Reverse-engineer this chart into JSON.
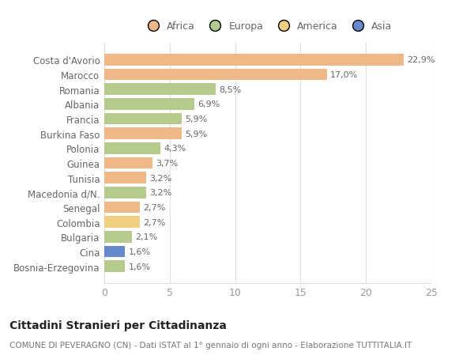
{
  "categories": [
    "Bosnia-Erzegovina",
    "Cina",
    "Bulgaria",
    "Colombia",
    "Senegal",
    "Macedonia d/N.",
    "Tunisia",
    "Guinea",
    "Polonia",
    "Burkina Faso",
    "Francia",
    "Albania",
    "Romania",
    "Marocco",
    "Costa d'Avorio"
  ],
  "values": [
    1.6,
    1.6,
    2.1,
    2.7,
    2.7,
    3.2,
    3.2,
    3.7,
    4.3,
    5.9,
    5.9,
    6.9,
    8.5,
    17.0,
    22.9
  ],
  "labels": [
    "1,6%",
    "1,6%",
    "2,1%",
    "2,7%",
    "2,7%",
    "3,2%",
    "3,2%",
    "3,7%",
    "4,3%",
    "5,9%",
    "5,9%",
    "6,9%",
    "8,5%",
    "17,0%",
    "22,9%"
  ],
  "colors": [
    "#b5ca8d",
    "#6688cc",
    "#b5ca8d",
    "#f0d080",
    "#f0b888",
    "#b5ca8d",
    "#f0b888",
    "#f0b888",
    "#b5ca8d",
    "#f0b888",
    "#b5ca8d",
    "#b5ca8d",
    "#b5ca8d",
    "#f0b888",
    "#f0b888"
  ],
  "legend_labels": [
    "Africa",
    "Europa",
    "America",
    "Asia"
  ],
  "legend_colors": [
    "#f0b888",
    "#b5ca8d",
    "#f0d080",
    "#6688cc"
  ],
  "title": "Cittadini Stranieri per Cittadinanza",
  "subtitle": "COMUNE DI PEVERAGNO (CN) - Dati ISTAT al 1° gennaio di ogni anno - Elaborazione TUTTITALIA.IT",
  "xlim": [
    0,
    25
  ],
  "xticks": [
    0,
    5,
    10,
    15,
    20,
    25
  ],
  "background_color": "#ffffff",
  "grid_color": "#e0e0e0",
  "label_color": "#666666",
  "tick_color": "#999999",
  "title_color": "#222222",
  "subtitle_color": "#777777"
}
